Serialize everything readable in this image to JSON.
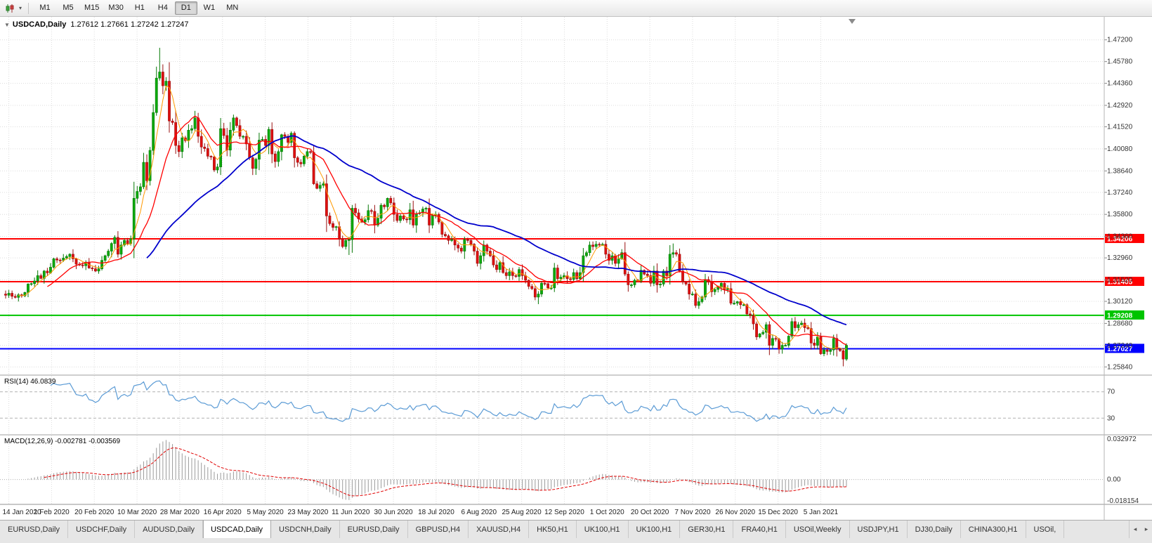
{
  "toolbar": {
    "timeframes": [
      "M1",
      "M5",
      "M15",
      "M30",
      "H1",
      "H4",
      "D1",
      "W1",
      "MN"
    ],
    "active": "D1"
  },
  "chart": {
    "title": "USDCAD,Daily",
    "ohlc": "1.27612 1.27661 1.27242 1.27247"
  },
  "indicators": {
    "rsi": {
      "label": "RSI(14) 46.0839",
      "levels": [
        "70",
        "30"
      ],
      "level_values": [
        70,
        30
      ]
    },
    "macd": {
      "label": "MACD(12,26,9) -0.002781 -0.003569",
      "axis_labels": [
        "0.032972",
        "0.00",
        "-0.018154"
      ],
      "axis_values": [
        0.032972,
        0,
        -0.018154
      ]
    }
  },
  "tabs": {
    "active_index": 3,
    "items": [
      "EURUSD,Daily",
      "USDCHF,Daily",
      "AUDUSD,Daily",
      "USDCAD,Daily",
      "USDCNH,Daily",
      "EURUSD,Daily",
      "GBPUSD,H4",
      "XAUUSD,H4",
      "HK50,H1",
      "UK100,H1",
      "UK100,H1",
      "GER30,H1",
      "FRA40,H1",
      "USOil,Weekly",
      "USDJPY,H1",
      "DJ30,Daily",
      "CHINA300,H1",
      "USOil,"
    ]
  },
  "chart_data": {
    "type": "candlestick",
    "symbol": "USDCAD",
    "timeframe": "Daily",
    "title": "USDCAD,Daily 1.27612 1.27661 1.27242 1.27247",
    "x_labels": [
      "14 Jan 2020",
      "1 Feb 2020",
      "20 Feb 2020",
      "10 Mar 2020",
      "28 Mar 2020",
      "16 Apr 2020",
      "5 May 2020",
      "23 May 2020",
      "11 Jun 2020",
      "30 Jun 2020",
      "18 Jul 2020",
      "6 Aug 2020",
      "25 Aug 2020",
      "12 Sep 2020",
      "1 Oct 2020",
      "20 Oct 2020",
      "7 Nov 2020",
      "26 Nov 2020",
      "15 Dec 2020",
      "5 Jan 2021"
    ],
    "y_axis_labels": [
      "1.47200",
      "1.45780",
      "1.44360",
      "1.42920",
      "1.41520",
      "1.40080",
      "1.38640",
      "1.37240",
      "1.35800",
      "1.34360",
      "1.32960",
      "1.31520",
      "1.30120",
      "1.28680",
      "1.27240",
      "1.25840"
    ],
    "view_price_top": 1.487,
    "view_price_bottom": 1.2535,
    "hlines": [
      {
        "label": "1.34206",
        "value": 1.34206,
        "color": "#ff0000"
      },
      {
        "label": "1.31405",
        "value": 1.31405,
        "color": "#ff0000"
      },
      {
        "label": "1.29208",
        "value": 1.29208,
        "color": "#00c400"
      },
      {
        "label": "1.27027",
        "value": 1.27027,
        "color": "#0000ff"
      }
    ],
    "moving_averages": [
      {
        "name": "fast",
        "period": 5,
        "color": "#ff9900",
        "width": 1
      },
      {
        "name": "medium",
        "period": 14,
        "color": "#ff0000",
        "width": 1.3
      },
      {
        "name": "slow",
        "period": 45,
        "color": "#0000cc",
        "width": 1.8
      }
    ],
    "closes": [
      1.3052,
      1.3065,
      1.3045,
      1.3038,
      1.3055,
      1.3048,
      1.307,
      1.3125,
      1.3128,
      1.3145,
      1.318,
      1.3162,
      1.321,
      1.3198,
      1.3235,
      1.329,
      1.3282,
      1.328,
      1.3295,
      1.3305,
      1.332,
      1.329,
      1.3255,
      1.325,
      1.3245,
      1.3268,
      1.323,
      1.3225,
      1.321,
      1.3225,
      1.328,
      1.331,
      1.334,
      1.339,
      1.343,
      1.332,
      1.338,
      1.341,
      1.339,
      1.342,
      1.3685,
      1.373,
      1.376,
      1.392,
      1.38,
      1.3998,
      1.4245,
      1.447,
      1.451,
      1.442,
      1.445,
      1.419,
      1.418,
      1.403,
      1.399,
      1.408,
      1.4062,
      1.413,
      1.414,
      1.421,
      1.409,
      1.402,
      1.401,
      1.396,
      1.3955,
      1.387,
      1.389,
      1.414,
      1.4095,
      1.4,
      1.413,
      1.421,
      1.416,
      1.409,
      1.409,
      1.404,
      1.395,
      1.388,
      1.394,
      1.4065,
      1.407,
      1.403,
      1.4135,
      1.3975,
      1.3925,
      1.399,
      1.41,
      1.409,
      1.405,
      1.411,
      1.395,
      1.392,
      1.391,
      1.396,
      1.399,
      1.3985,
      1.378,
      1.375,
      1.377,
      1.378,
      1.357,
      1.352,
      1.3495,
      1.35,
      1.342,
      1.337,
      1.341,
      1.3415,
      1.362,
      1.359,
      1.355,
      1.353,
      1.3545,
      1.3605,
      1.36,
      1.351,
      1.3555,
      1.364,
      1.363,
      1.3685,
      1.3655,
      1.358,
      1.354,
      1.357,
      1.355,
      1.3545,
      1.361,
      1.351,
      1.3585,
      1.359,
      1.3615,
      1.362,
      1.351,
      1.3575,
      1.358,
      1.353,
      1.345,
      1.344,
      1.341,
      1.3415,
      1.338,
      1.336,
      1.334,
      1.3415,
      1.341,
      1.3385,
      1.334,
      1.326,
      1.331,
      1.338,
      1.334,
      1.331,
      1.325,
      1.322,
      1.3265,
      1.32,
      1.318,
      1.3205,
      1.318,
      1.3175,
      1.322,
      1.318,
      1.315,
      1.311,
      1.3095,
      1.304,
      1.306,
      1.313,
      1.3127,
      1.31,
      1.31,
      1.323,
      1.316,
      1.317,
      1.318,
      1.316,
      1.3155,
      1.32,
      1.316,
      1.32,
      1.331,
      1.333,
      1.338,
      1.337,
      1.3385,
      1.338,
      1.3385,
      1.332,
      1.328,
      1.331,
      1.326,
      1.329,
      1.333,
      1.319,
      1.312,
      1.312,
      1.315,
      1.3145,
      1.3215,
      1.319,
      1.318,
      1.313,
      1.321,
      1.312,
      1.3125,
      1.321,
      1.318,
      1.332,
      1.333,
      1.332,
      1.321,
      1.314,
      1.3125,
      1.306,
      1.306,
      1.2985,
      1.301,
      1.304,
      1.3155,
      1.314,
      1.3075,
      1.309,
      1.3105,
      1.313,
      1.309,
      1.3095,
      1.3,
      1.3,
      1.301,
      1.299,
      1.299,
      1.293,
      1.292,
      1.2865,
      1.278,
      1.28,
      1.281,
      1.286,
      1.2725,
      1.277,
      1.2765,
      1.27,
      1.2725,
      1.2725,
      1.2785,
      1.288,
      1.284,
      1.286,
      1.287,
      1.284,
      1.2835,
      1.274,
      1.2725,
      1.278,
      1.267,
      1.2695,
      1.2685,
      1.2695,
      1.277,
      1.27,
      1.269,
      1.2635,
      1.2725
    ],
    "high_overrides": {
      "47": 1.4545,
      "48": 1.4668,
      "208": 1.339
    },
    "low_overrides": {
      "107": 1.3315,
      "166": 1.2994,
      "261": 1.2588
    }
  }
}
